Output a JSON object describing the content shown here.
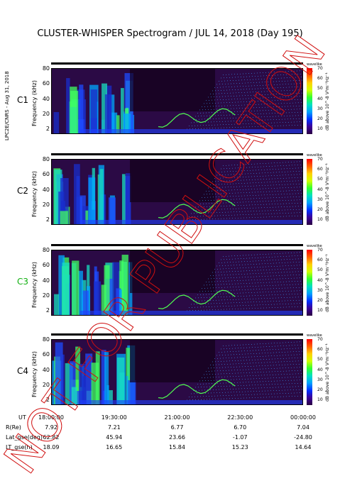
{
  "title": "CLUSTER-WHISPER Spectrogram / JUL 14, 2018 (Day 195)",
  "credit": "LPC2E/CNRS - Aug 31, 2018",
  "watermark": "NOT FOR PUBLICATION",
  "colors": {
    "c3_label": "#10b010",
    "watermark": "#d01010"
  },
  "chart_data": {
    "type": "heatmap",
    "ylabel": "Frequency (kHz)",
    "yticks": [
      "80",
      "60",
      "40",
      "20",
      "2"
    ],
    "ylim": [
      2,
      80
    ],
    "x_ticks": [
      "18:00:00",
      "19:30:00",
      "21:00:00",
      "22:30:00",
      "00:00:00"
    ],
    "xlim": [
      "18:00:00",
      "00:00:00"
    ],
    "colorbar": {
      "header": "wavelike",
      "label": "dB above 10^-8 V²m⁻²Hz⁻¹",
      "ticks": [
        "70",
        "60",
        "50",
        "40",
        "30",
        "20",
        "10"
      ],
      "range": [
        10,
        70
      ]
    },
    "panels": [
      {
        "name": "C1"
      },
      {
        "name": "C2"
      },
      {
        "name": "C3"
      },
      {
        "name": "C4"
      }
    ]
  },
  "table": {
    "rows": [
      {
        "label": "UT",
        "values": [
          "18:00:00",
          "19:30:00",
          "21:00:00",
          "22:30:00",
          "00:00:00"
        ]
      },
      {
        "label": "R(Re)",
        "values": [
          "7.92",
          "7.21",
          "6.77",
          "6.70",
          "7.04"
        ]
      },
      {
        "label": "Lat_gse(deg)",
        "values": [
          "62.82",
          "45.94",
          "23.66",
          "-1.07",
          "-24.80"
        ]
      },
      {
        "label": "LT_gse(h)",
        "values": [
          "18.09",
          "16.65",
          "15.84",
          "15.23",
          "14.64"
        ]
      }
    ]
  }
}
